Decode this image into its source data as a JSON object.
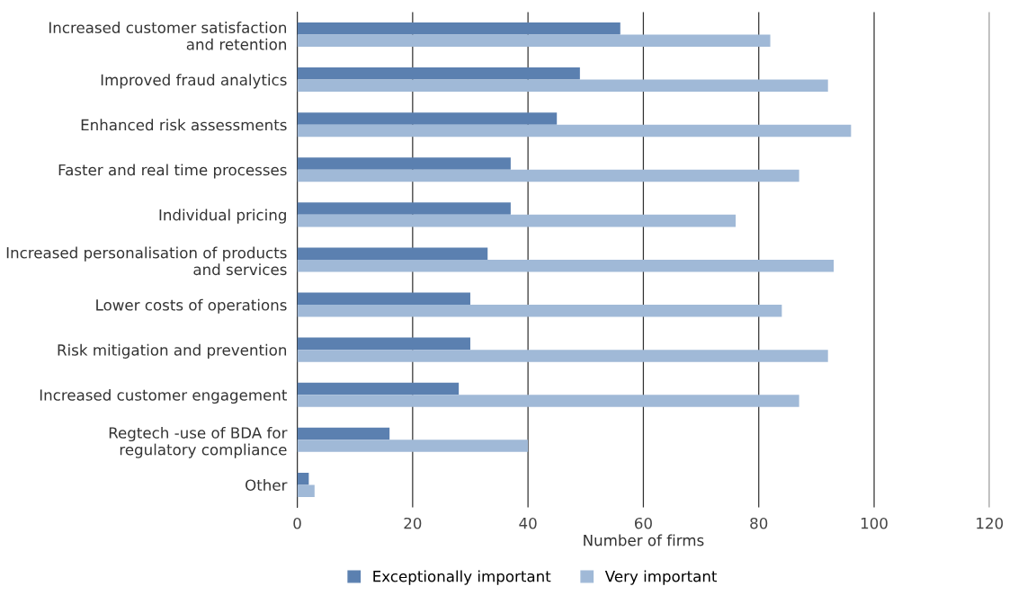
{
  "chart_data": {
    "type": "bar",
    "orientation": "horizontal",
    "xlabel": "Number of firms",
    "categories": [
      "Increased customer satisfaction\nand retention",
      "Improved fraud analytics",
      "Enhanced risk assessments",
      "Faster and real time processes",
      "Individual pricing",
      "Increased personalisation of products\nand services",
      "Lower costs of operations",
      "Risk mitigation and prevention",
      "Increased customer engagement",
      "Regtech -use of BDA for\nregulatory compliance",
      "Other"
    ],
    "series": [
      {
        "name": "Exceptionally important",
        "color": "#5b80b0",
        "values": [
          56,
          49,
          45,
          37,
          37,
          33,
          30,
          30,
          28,
          16,
          2
        ]
      },
      {
        "name": "Very important",
        "color": "#a0b9d7",
        "values": [
          82,
          92,
          96,
          87,
          76,
          93,
          84,
          92,
          87,
          40,
          3
        ]
      }
    ],
    "xlim": [
      0,
      120
    ],
    "xticks": [
      0,
      20,
      40,
      60,
      80,
      100,
      120
    ],
    "grid": "x",
    "legend": "bottom"
  }
}
